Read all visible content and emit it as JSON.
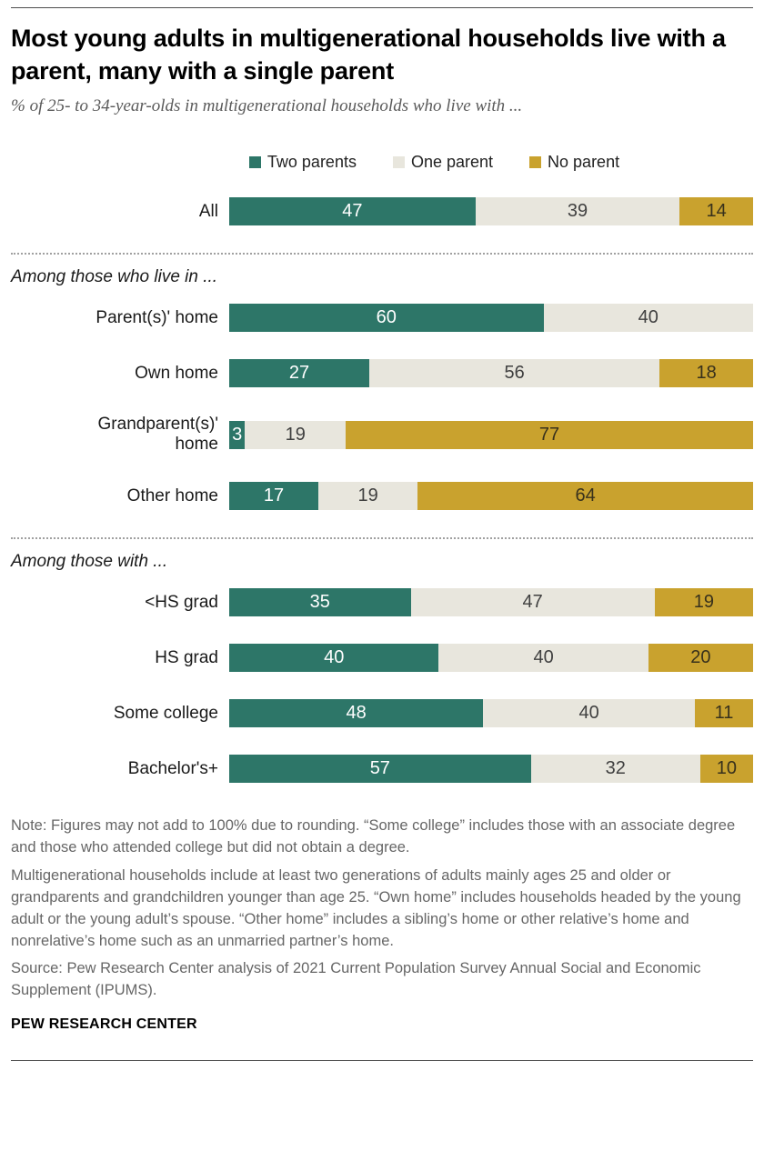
{
  "header": {
    "title": "Most young adults in multigenerational households live with a parent, many with a single parent",
    "subtitle": "% of 25- to 34-year-olds in multigenerational households who live with ..."
  },
  "colors": {
    "two_parents": "#2d7668",
    "one_parent": "#e8e6dd",
    "no_parent": "#c9a22e"
  },
  "legend": [
    {
      "label": "Two parents",
      "color": "#2d7668"
    },
    {
      "label": "One parent",
      "color": "#e8e6dd"
    },
    {
      "label": "No parent",
      "color": "#c9a22e"
    }
  ],
  "chart_data": {
    "type": "bar",
    "stacked": true,
    "orientation": "horizontal",
    "units": "percent",
    "xlim": [
      0,
      100
    ],
    "series_names": [
      "Two parents",
      "One parent",
      "No parent"
    ],
    "groups": [
      {
        "section": null,
        "rows": [
          {
            "label": "All",
            "values": [
              47,
              39,
              14
            ]
          }
        ]
      },
      {
        "section": "Among those who live in ...",
        "rows": [
          {
            "label": "Parent(s)' home",
            "values": [
              60,
              40,
              0
            ]
          },
          {
            "label": "Own home",
            "values": [
              27,
              56,
              18
            ]
          },
          {
            "label": "Grandparent(s)' home",
            "values": [
              3,
              19,
              77
            ]
          },
          {
            "label": "Other home",
            "values": [
              17,
              19,
              64
            ]
          }
        ]
      },
      {
        "section": "Among those with ...",
        "rows": [
          {
            "label": "<HS grad",
            "values": [
              35,
              47,
              19
            ]
          },
          {
            "label": "HS grad",
            "values": [
              40,
              40,
              20
            ]
          },
          {
            "label": "Some college",
            "values": [
              48,
              40,
              11
            ]
          },
          {
            "label": "Bachelor's+",
            "values": [
              57,
              32,
              10
            ]
          }
        ]
      }
    ]
  },
  "notes": [
    "Note: Figures may not add to 100% due to rounding. “Some college” includes those with an associate degree and those who attended college but did not obtain a degree.",
    "Multigenerational households include at least two generations of adults mainly ages 25 and older or grandparents and grandchildren younger than age 25. “Own home” includes households headed by the young adult or the young adult’s spouse. “Other home” includes a sibling’s home or other relative’s home and nonrelative’s home such as an unmarried partner’s home.",
    "Source: Pew Research Center analysis of 2021 Current Population Survey Annual Social and Economic Supplement (IPUMS)."
  ],
  "footer": {
    "brand": "PEW RESEARCH CENTER"
  }
}
